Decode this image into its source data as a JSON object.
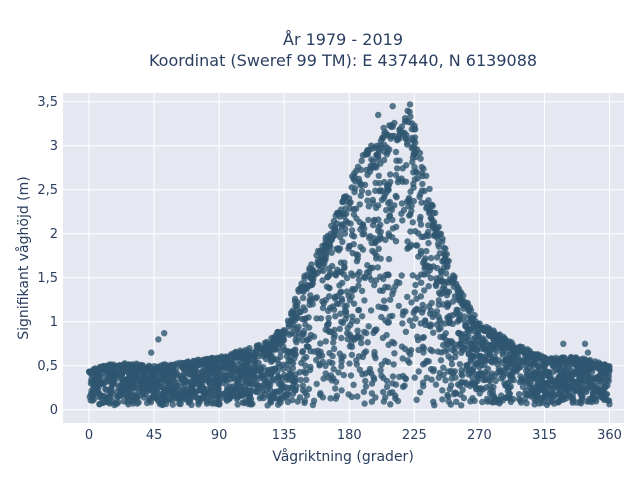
{
  "chart_data": {
    "type": "scatter",
    "title": "År 1979 - 2019",
    "subtitle": "Koordinat (Sweref 99 TM): E 437440, N 6139088",
    "xlabel": "Vågriktning (grader)",
    "ylabel": "Signifikant våghöjd (m)",
    "xlim": [
      -18,
      370
    ],
    "ylim": [
      -0.15,
      3.6
    ],
    "grid": true,
    "marker_color": "#2f5670",
    "background_color": "#e5e8f1",
    "x_ticks": [
      {
        "value": 0,
        "label": "0"
      },
      {
        "value": 45,
        "label": "45"
      },
      {
        "value": 90,
        "label": "90"
      },
      {
        "value": 135,
        "label": "135"
      },
      {
        "value": 180,
        "label": "180"
      },
      {
        "value": 225,
        "label": "225"
      },
      {
        "value": 270,
        "label": "270"
      },
      {
        "value": 315,
        "label": "315"
      },
      {
        "value": 360,
        "label": "360"
      }
    ],
    "y_ticks": [
      {
        "value": 0,
        "label": "0"
      },
      {
        "value": 0.5,
        "label": "0,5"
      },
      {
        "value": 1,
        "label": "1"
      },
      {
        "value": 1.5,
        "label": "1,5"
      },
      {
        "value": 2,
        "label": "2"
      },
      {
        "value": 2.5,
        "label": "2,5"
      },
      {
        "value": 3,
        "label": "3"
      },
      {
        "value": 3.5,
        "label": "3,5"
      }
    ],
    "envelope": {
      "description_points": [
        [
          0,
          0.45
        ],
        [
          20,
          0.55
        ],
        [
          45,
          0.5
        ],
        [
          90,
          0.6
        ],
        [
          120,
          0.75
        ],
        [
          135,
          0.95
        ],
        [
          150,
          1.6
        ],
        [
          165,
          2.0
        ],
        [
          180,
          2.6
        ],
        [
          195,
          3.1
        ],
        [
          210,
          3.3
        ],
        [
          222,
          3.45
        ],
        [
          230,
          2.9
        ],
        [
          240,
          2.2
        ],
        [
          255,
          1.4
        ],
        [
          270,
          1.0
        ],
        [
          290,
          0.8
        ],
        [
          315,
          0.6
        ],
        [
          340,
          0.6
        ],
        [
          360,
          0.5
        ]
      ],
      "floor": 0.05
    },
    "outliers": [
      {
        "x": 52,
        "y": 0.87
      },
      {
        "x": 48,
        "y": 0.8
      },
      {
        "x": 43,
        "y": 0.65
      },
      {
        "x": 328,
        "y": 0.75
      },
      {
        "x": 343,
        "y": 0.75
      },
      {
        "x": 345,
        "y": 0.65
      },
      {
        "x": 210,
        "y": 3.45
      },
      {
        "x": 222,
        "y": 3.47
      },
      {
        "x": 200,
        "y": 3.35
      }
    ]
  }
}
